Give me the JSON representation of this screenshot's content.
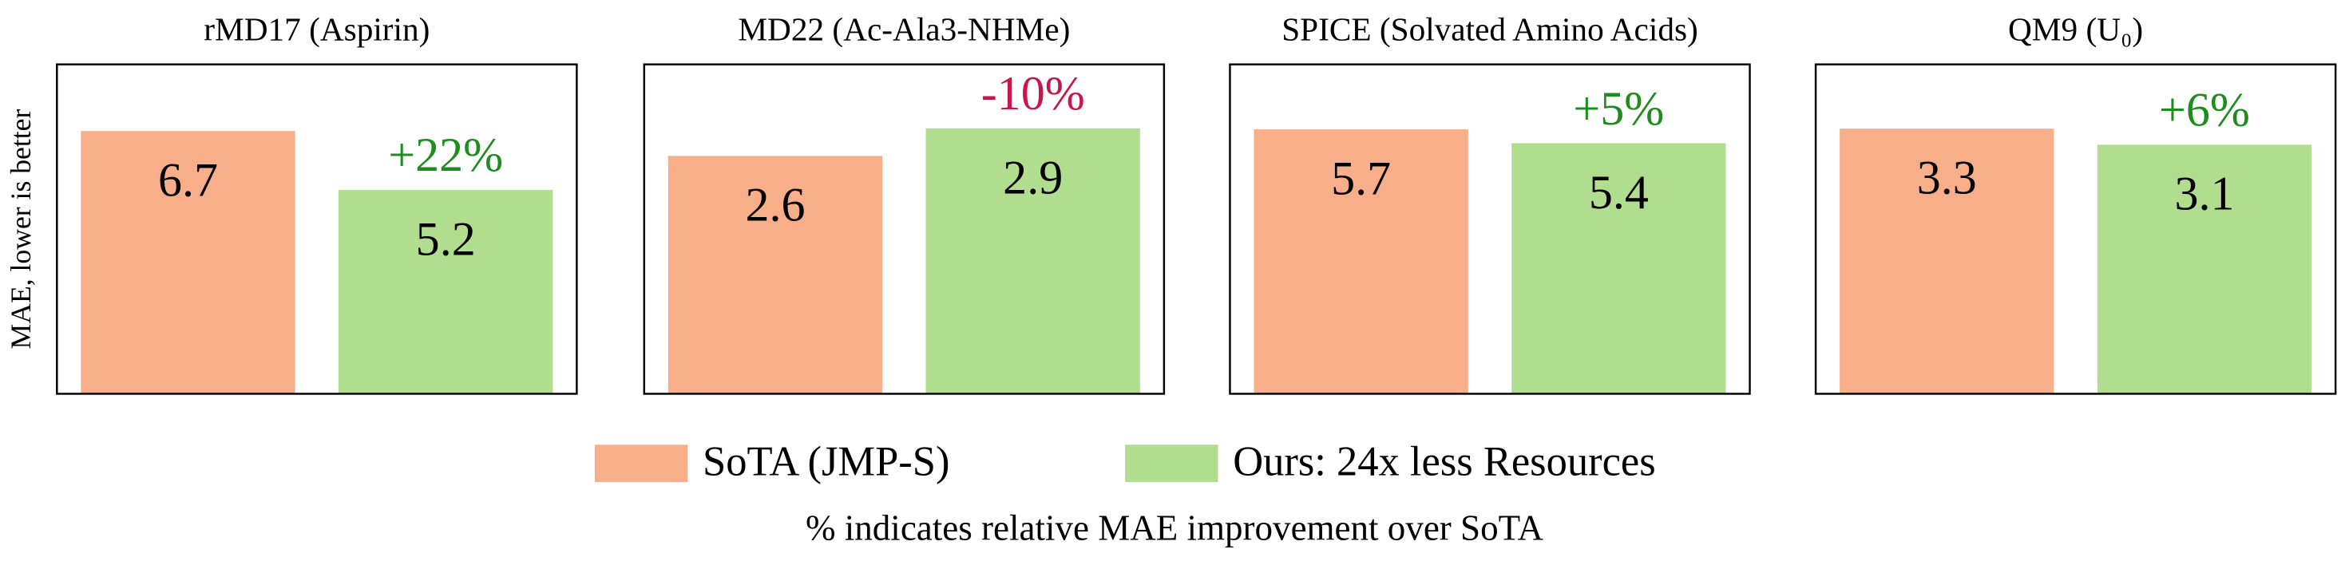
{
  "chart_data": [
    {
      "type": "bar",
      "title": "rMD17 (Aspirin)",
      "ylabel": "MAE, lower is better",
      "values": [
        6.7,
        5.2
      ],
      "ylim": [
        0,
        8.4
      ],
      "annotation": "+22%",
      "annotation_color": "#1e8c1e"
    },
    {
      "type": "bar",
      "title": "MD22 (Ac-Ala3-NHMe)",
      "values": [
        2.6,
        2.9
      ],
      "ylim": [
        0,
        3.6
      ],
      "annotation": "-10%",
      "annotation_color": "#c8164a"
    },
    {
      "type": "bar",
      "title": "SPICE (Solvated Amino Acids)",
      "values": [
        5.7,
        5.4
      ],
      "ylim": [
        0,
        7.1
      ],
      "annotation": "+5%",
      "annotation_color": "#1e8c1e"
    },
    {
      "type": "bar",
      "title": "QM9 (U₀)",
      "values": [
        3.3,
        3.1
      ],
      "ylim": [
        0,
        4.1
      ],
      "annotation": "+6%",
      "annotation_color": "#1e8c1e"
    }
  ],
  "legend": {
    "series": [
      {
        "name": "SoTA (JMP-S)",
        "color": "#f9ae8a"
      },
      {
        "name": "Ours: 24x less Resources",
        "color": "#b1dd8e"
      }
    ]
  },
  "note": "% indicates relative MAE improvement over SoTA"
}
